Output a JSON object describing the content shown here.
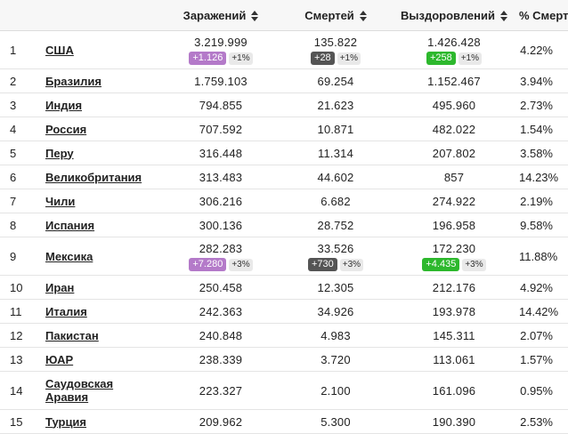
{
  "headers": {
    "rank": "",
    "country": "",
    "cases": "Заражений",
    "deaths": "Смертей",
    "recovered": "Выздоровлений",
    "death_rate": "% Смертей"
  },
  "icons": {
    "sort": "sort-up-down-icon"
  },
  "colors": {
    "cases_delta": "#b47ac9",
    "deaths_delta": "#555555",
    "recovered_delta": "#2db82d",
    "pct_badge": "#e9e9e9"
  },
  "rows": [
    {
      "rank": "1",
      "country": "США",
      "cases": "3.219.999",
      "deaths": "135.822",
      "recovered": "1.426.428",
      "death_rate": "4.22%",
      "cases_delta": "+1.126",
      "cases_pct": "+1%",
      "deaths_delta": "+28",
      "deaths_pct": "+1%",
      "recovered_delta": "+258",
      "recovered_pct": "+1%"
    },
    {
      "rank": "2",
      "country": "Бразилия",
      "cases": "1.759.103",
      "deaths": "69.254",
      "recovered": "1.152.467",
      "death_rate": "3.94%"
    },
    {
      "rank": "3",
      "country": "Индия",
      "cases": "794.855",
      "deaths": "21.623",
      "recovered": "495.960",
      "death_rate": "2.73%"
    },
    {
      "rank": "4",
      "country": "Россия",
      "cases": "707.592",
      "deaths": "10.871",
      "recovered": "482.022",
      "death_rate": "1.54%"
    },
    {
      "rank": "5",
      "country": "Перу",
      "cases": "316.448",
      "deaths": "11.314",
      "recovered": "207.802",
      "death_rate": "3.58%"
    },
    {
      "rank": "6",
      "country": "Великобритания",
      "cases": "313.483",
      "deaths": "44.602",
      "recovered": "857",
      "death_rate": "14.23%"
    },
    {
      "rank": "7",
      "country": "Чили",
      "cases": "306.216",
      "deaths": "6.682",
      "recovered": "274.922",
      "death_rate": "2.19%"
    },
    {
      "rank": "8",
      "country": "Испания",
      "cases": "300.136",
      "deaths": "28.752",
      "recovered": "196.958",
      "death_rate": "9.58%"
    },
    {
      "rank": "9",
      "country": "Мексика",
      "cases": "282.283",
      "deaths": "33.526",
      "recovered": "172.230",
      "death_rate": "11.88%",
      "cases_delta": "+7.280",
      "cases_pct": "+3%",
      "deaths_delta": "+730",
      "deaths_pct": "+3%",
      "recovered_delta": "+4.435",
      "recovered_pct": "+3%"
    },
    {
      "rank": "10",
      "country": "Иран",
      "cases": "250.458",
      "deaths": "12.305",
      "recovered": "212.176",
      "death_rate": "4.92%"
    },
    {
      "rank": "11",
      "country": "Италия",
      "cases": "242.363",
      "deaths": "34.926",
      "recovered": "193.978",
      "death_rate": "14.42%"
    },
    {
      "rank": "12",
      "country": "Пакистан",
      "cases": "240.848",
      "deaths": "4.983",
      "recovered": "145.311",
      "death_rate": "2.07%"
    },
    {
      "rank": "13",
      "country": "ЮАР",
      "cases": "238.339",
      "deaths": "3.720",
      "recovered": "113.061",
      "death_rate": "1.57%"
    },
    {
      "rank": "14",
      "country": "Саудовская Аравия",
      "cases": "223.327",
      "deaths": "2.100",
      "recovered": "161.096",
      "death_rate": "0.95%"
    },
    {
      "rank": "15",
      "country": "Турция",
      "cases": "209.962",
      "deaths": "5.300",
      "recovered": "190.390",
      "death_rate": "2.53%"
    }
  ]
}
